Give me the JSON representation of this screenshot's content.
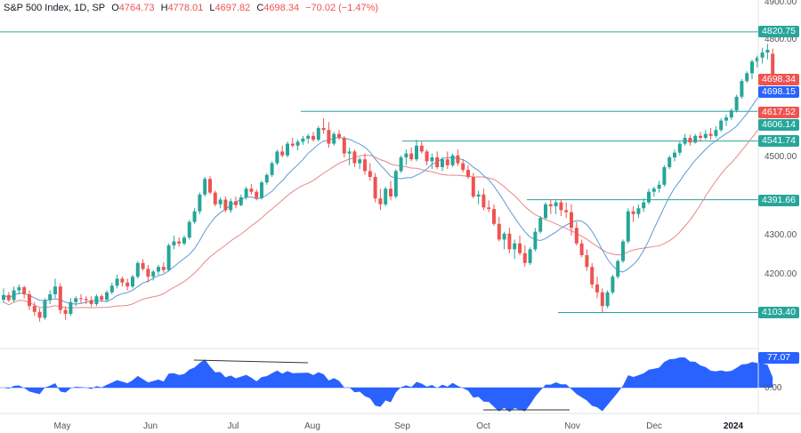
{
  "header": {
    "title": "S&P 500 Index, 1D, SP",
    "open_label": "O",
    "open": "4764.73",
    "high_label": "H",
    "high": "4778.01",
    "low_label": "L",
    "low": "4697.82",
    "close_label": "C",
    "close": "4698.34",
    "change": "−70.02 (−1.47%)"
  },
  "colors": {
    "up": "#26a69a",
    "down": "#ef5350",
    "fast_ma": "#5b9bd5",
    "slow_ma": "#e8868a",
    "level_line": "#26a69a",
    "osc_fill": "#2962ff",
    "pill_level": "#26a69a",
    "pill_close": "#ef5350",
    "pill_ma": "#2962ff"
  },
  "price_labels": {
    "level_4820": "4820.75",
    "close": "4698.34",
    "ma": "4698.15",
    "level_4617": "4617.52",
    "level_4606": "4606.14",
    "level_4541": "4541.74",
    "level_4391": "4391.66",
    "level_4103": "4103.40"
  },
  "oscillator_labels": {
    "value": "77.07",
    "zero": "0.00"
  },
  "chart_data": {
    "type": "candlestick",
    "y_axis": {
      "ticks": [
        "4900.00",
        "4800.00",
        "4500.00",
        "4300.00",
        "4200.00"
      ],
      "ylim": [
        4020,
        4900
      ]
    },
    "x_axis": {
      "ticks": [
        "May",
        "Jun",
        "Jul",
        "Aug",
        "Sep",
        "Oct",
        "Nov",
        "Dec",
        "2024"
      ]
    },
    "horizontal_levels": [
      4820.75,
      4617.52,
      4541.74,
      4391.66,
      4103.4
    ],
    "candles": [
      [
        4136,
        4165,
        4128,
        4148
      ],
      [
        4148,
        4156,
        4130,
        4135
      ],
      [
        4135,
        4170,
        4130,
        4160
      ],
      [
        4160,
        4175,
        4150,
        4168
      ],
      [
        4168,
        4172,
        4140,
        4150
      ],
      [
        4150,
        4160,
        4110,
        4120
      ],
      [
        4120,
        4130,
        4095,
        4105
      ],
      [
        4105,
        4115,
        4080,
        4090
      ],
      [
        4090,
        4140,
        4085,
        4135
      ],
      [
        4135,
        4160,
        4125,
        4150
      ],
      [
        4150,
        4190,
        4140,
        4170
      ],
      [
        4170,
        4178,
        4100,
        4110
      ],
      [
        4110,
        4120,
        4085,
        4100
      ],
      [
        4100,
        4140,
        4095,
        4130
      ],
      [
        4130,
        4145,
        4120,
        4140
      ],
      [
        4140,
        4150,
        4128,
        4138
      ],
      [
        4138,
        4145,
        4125,
        4135
      ],
      [
        4135,
        4145,
        4118,
        4125
      ],
      [
        4125,
        4150,
        4120,
        4145
      ],
      [
        4145,
        4150,
        4130,
        4136
      ],
      [
        4136,
        4160,
        4130,
        4155
      ],
      [
        4155,
        4180,
        4150,
        4172
      ],
      [
        4172,
        4200,
        4165,
        4190
      ],
      [
        4190,
        4195,
        4170,
        4180
      ],
      [
        4180,
        4190,
        4160,
        4170
      ],
      [
        4170,
        4200,
        4165,
        4195
      ],
      [
        4195,
        4235,
        4190,
        4230
      ],
      [
        4230,
        4240,
        4210,
        4215
      ],
      [
        4215,
        4225,
        4180,
        4195
      ],
      [
        4195,
        4212,
        4185,
        4208
      ],
      [
        4208,
        4225,
        4200,
        4220
      ],
      [
        4220,
        4232,
        4205,
        4212
      ],
      [
        4212,
        4280,
        4208,
        4275
      ],
      [
        4275,
        4300,
        4265,
        4285
      ],
      [
        4285,
        4295,
        4272,
        4280
      ],
      [
        4280,
        4300,
        4275,
        4295
      ],
      [
        4295,
        4340,
        4290,
        4335
      ],
      [
        4335,
        4370,
        4330,
        4362
      ],
      [
        4362,
        4410,
        4355,
        4405
      ],
      [
        4405,
        4450,
        4400,
        4445
      ],
      [
        4445,
        4452,
        4405,
        4410
      ],
      [
        4410,
        4415,
        4375,
        4380
      ],
      [
        4380,
        4398,
        4370,
        4392
      ],
      [
        4392,
        4400,
        4360,
        4365
      ],
      [
        4365,
        4395,
        4358,
        4388
      ],
      [
        4388,
        4400,
        4370,
        4378
      ],
      [
        4378,
        4405,
        4375,
        4398
      ],
      [
        4398,
        4425,
        4392,
        4420
      ],
      [
        4420,
        4432,
        4405,
        4412
      ],
      [
        4412,
        4418,
        4390,
        4396
      ],
      [
        4396,
        4440,
        4392,
        4436
      ],
      [
        4436,
        4460,
        4430,
        4455
      ],
      [
        4455,
        4490,
        4450,
        4485
      ],
      [
        4485,
        4520,
        4480,
        4515
      ],
      [
        4515,
        4530,
        4500,
        4505
      ],
      [
        4505,
        4540,
        4500,
        4535
      ],
      [
        4535,
        4550,
        4525,
        4530
      ],
      [
        4530,
        4545,
        4518,
        4540
      ],
      [
        4540,
        4555,
        4532,
        4548
      ],
      [
        4548,
        4560,
        4535,
        4555
      ],
      [
        4555,
        4565,
        4540,
        4545
      ],
      [
        4545,
        4580,
        4540,
        4575
      ],
      [
        4575,
        4600,
        4560,
        4570
      ],
      [
        4570,
        4590,
        4525,
        4535
      ],
      [
        4535,
        4565,
        4530,
        4560
      ],
      [
        4560,
        4570,
        4545,
        4550
      ],
      [
        4550,
        4555,
        4500,
        4510
      ],
      [
        4510,
        4525,
        4480,
        4515
      ],
      [
        4515,
        4520,
        4475,
        4485
      ],
      [
        4485,
        4500,
        4470,
        4495
      ],
      [
        4495,
        4510,
        4455,
        4465
      ],
      [
        4465,
        4485,
        4440,
        4450
      ],
      [
        4450,
        4460,
        4385,
        4395
      ],
      [
        4395,
        4420,
        4365,
        4380
      ],
      [
        4380,
        4425,
        4375,
        4420
      ],
      [
        4420,
        4440,
        4390,
        4400
      ],
      [
        4400,
        4470,
        4395,
        4465
      ],
      [
        4465,
        4505,
        4460,
        4500
      ],
      [
        4500,
        4520,
        4480,
        4510
      ],
      [
        4510,
        4525,
        4490,
        4495
      ],
      [
        4495,
        4545,
        4490,
        4530
      ],
      [
        4530,
        4540,
        4510,
        4515
      ],
      [
        4515,
        4520,
        4480,
        4490
      ],
      [
        4490,
        4510,
        4470,
        4500
      ],
      [
        4500,
        4515,
        4470,
        4475
      ],
      [
        4475,
        4500,
        4465,
        4495
      ],
      [
        4495,
        4515,
        4470,
        4480
      ],
      [
        4480,
        4510,
        4475,
        4505
      ],
      [
        4505,
        4520,
        4478,
        4485
      ],
      [
        4485,
        4495,
        4462,
        4468
      ],
      [
        4468,
        4480,
        4445,
        4450
      ],
      [
        4450,
        4460,
        4395,
        4400
      ],
      [
        4400,
        4415,
        4380,
        4405
      ],
      [
        4405,
        4420,
        4365,
        4372
      ],
      [
        4372,
        4390,
        4360,
        4368
      ],
      [
        4368,
        4380,
        4325,
        4330
      ],
      [
        4330,
        4348,
        4285,
        4290
      ],
      [
        4290,
        4310,
        4265,
        4305
      ],
      [
        4305,
        4320,
        4255,
        4265
      ],
      [
        4265,
        4290,
        4240,
        4280
      ],
      [
        4280,
        4300,
        4250,
        4255
      ],
      [
        4255,
        4275,
        4220,
        4230
      ],
      [
        4230,
        4270,
        4225,
        4265
      ],
      [
        4265,
        4320,
        4260,
        4310
      ],
      [
        4310,
        4350,
        4305,
        4345
      ],
      [
        4345,
        4385,
        4340,
        4380
      ],
      [
        4380,
        4392,
        4355,
        4375
      ],
      [
        4375,
        4390,
        4355,
        4385
      ],
      [
        4385,
        4393,
        4350,
        4365
      ],
      [
        4365,
        4385,
        4345,
        4360
      ],
      [
        4360,
        4380,
        4300,
        4320
      ],
      [
        4320,
        4335,
        4275,
        4280
      ],
      [
        4280,
        4290,
        4245,
        4250
      ],
      [
        4250,
        4265,
        4210,
        4220
      ],
      [
        4220,
        4230,
        4165,
        4175
      ],
      [
        4175,
        4195,
        4140,
        4155
      ],
      [
        4155,
        4165,
        4103,
        4120
      ],
      [
        4120,
        4160,
        4115,
        4155
      ],
      [
        4155,
        4200,
        4150,
        4195
      ],
      [
        4195,
        4240,
        4190,
        4235
      ],
      [
        4235,
        4290,
        4230,
        4285
      ],
      [
        4285,
        4370,
        4280,
        4362
      ],
      [
        4362,
        4375,
        4335,
        4355
      ],
      [
        4355,
        4380,
        4345,
        4370
      ],
      [
        4370,
        4395,
        4360,
        4385
      ],
      [
        4385,
        4420,
        4380,
        4412
      ],
      [
        4412,
        4425,
        4400,
        4420
      ],
      [
        4420,
        4440,
        4410,
        4430
      ],
      [
        4430,
        4480,
        4425,
        4475
      ],
      [
        4475,
        4505,
        4470,
        4500
      ],
      [
        4500,
        4520,
        4490,
        4512
      ],
      [
        4512,
        4540,
        4505,
        4535
      ],
      [
        4535,
        4560,
        4530,
        4550
      ],
      [
        4550,
        4558,
        4530,
        4538
      ],
      [
        4538,
        4560,
        4535,
        4555
      ],
      [
        4555,
        4565,
        4540,
        4550
      ],
      [
        4550,
        4570,
        4545,
        4560
      ],
      [
        4560,
        4575,
        4545,
        4555
      ],
      [
        4555,
        4580,
        4550,
        4570
      ],
      [
        4570,
        4600,
        4565,
        4594
      ],
      [
        4594,
        4610,
        4580,
        4602
      ],
      [
        4602,
        4625,
        4595,
        4620
      ],
      [
        4620,
        4660,
        4615,
        4655
      ],
      [
        4655,
        4700,
        4650,
        4695
      ],
      [
        4695,
        4720,
        4690,
        4715
      ],
      [
        4715,
        4750,
        4700,
        4745
      ],
      [
        4745,
        4760,
        4730,
        4755
      ],
      [
        4755,
        4780,
        4740,
        4768
      ],
      [
        4768,
        4790,
        4750,
        4775
      ],
      [
        4764.73,
        4778.01,
        4697.82,
        4698.34
      ]
    ]
  }
}
